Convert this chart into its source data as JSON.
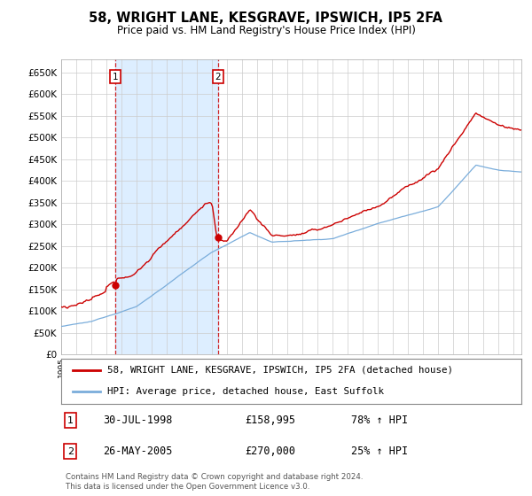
{
  "title": "58, WRIGHT LANE, KESGRAVE, IPSWICH, IP5 2FA",
  "subtitle": "Price paid vs. HM Land Registry's House Price Index (HPI)",
  "red_label": "58, WRIGHT LANE, KESGRAVE, IPSWICH, IP5 2FA (detached house)",
  "blue_label": "HPI: Average price, detached house, East Suffolk",
  "purchase1_date": "30-JUL-1998",
  "purchase1_price": 158995,
  "purchase1_hpi": "78% ↑ HPI",
  "purchase2_date": "26-MAY-2005",
  "purchase2_price": 270000,
  "purchase2_hpi": "25% ↑ HPI",
  "footnote": "Contains HM Land Registry data © Crown copyright and database right 2024.\nThis data is licensed under the Open Government Licence v3.0.",
  "red_color": "#cc0000",
  "blue_color": "#7aaddb",
  "span_color": "#ddeeff",
  "vline_color": "#cc0000",
  "box_color": "#cc0000",
  "grid_color": "#cccccc",
  "purchase1_x": 1998.58,
  "purchase2_x": 2005.39,
  "xmin": 1995.0,
  "xmax": 2025.5,
  "ymin": 0,
  "ymax": 680000,
  "ytick_step": 50000
}
